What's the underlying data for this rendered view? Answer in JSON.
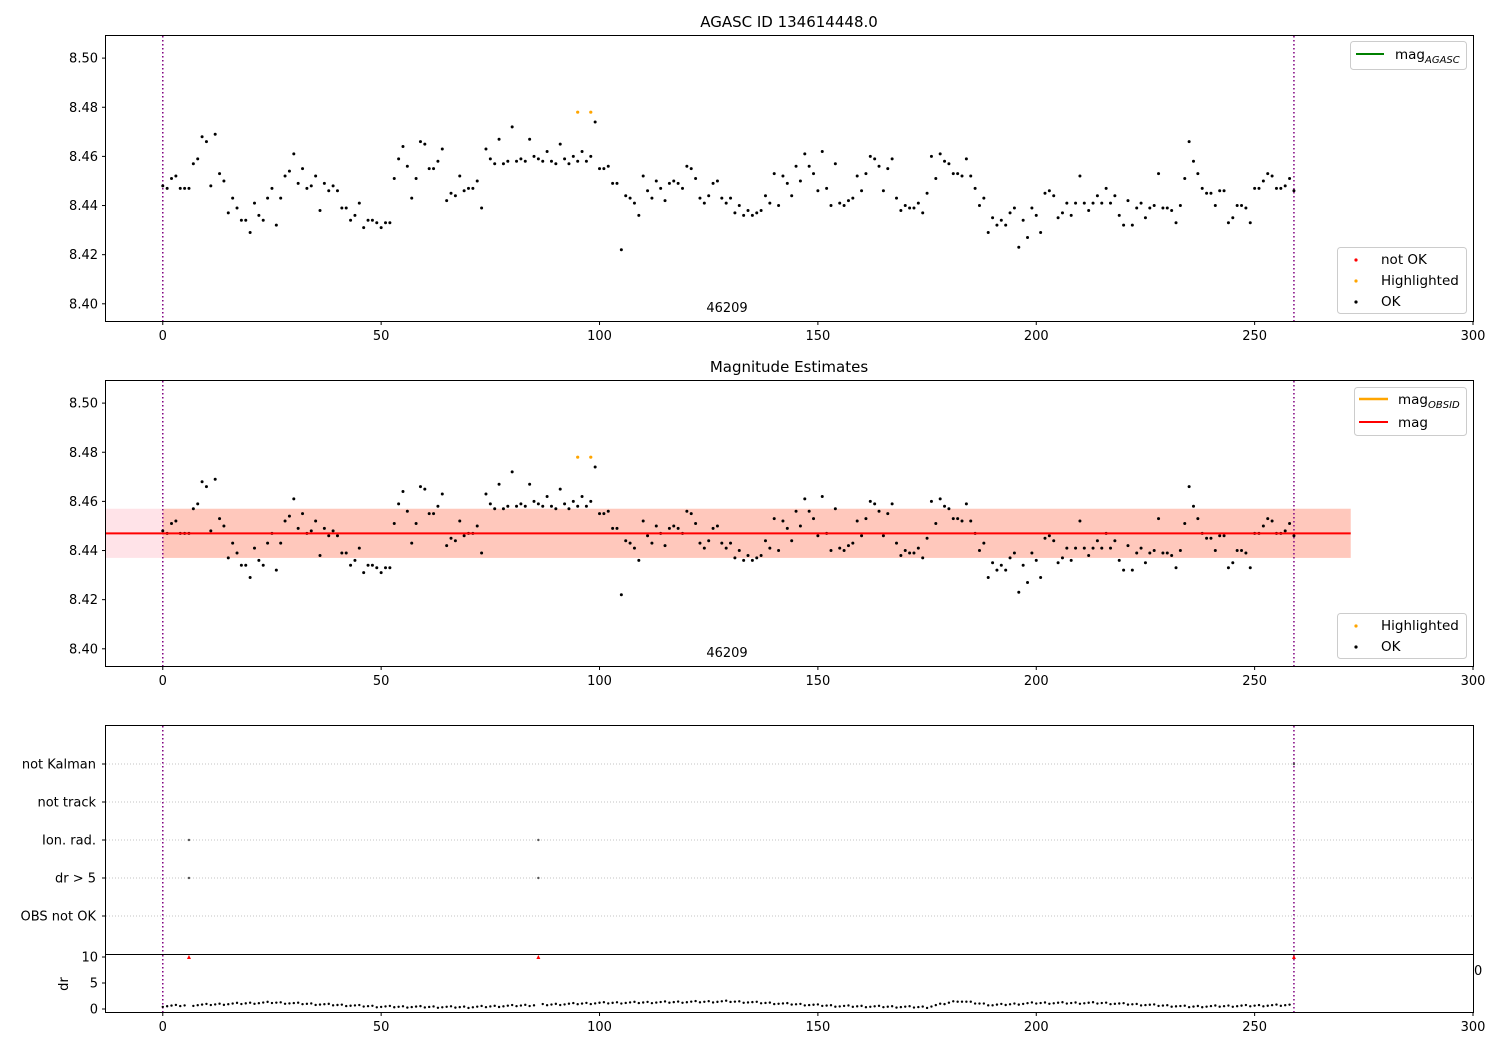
{
  "figure": {
    "title_top": "AGASC ID 134614448.0",
    "title_mid": "Magnitude Estimates",
    "obsid_label": "46209",
    "edge_fragment": "0"
  },
  "colors": {
    "ok": "#000000",
    "highlighted": "#ffa500",
    "not_ok": "#ff0000",
    "agasc_line": "#008000",
    "mag_line": "#ff0000",
    "obsid_line": "#ffa500",
    "band_outer": "#ffc0cb",
    "band_inner": "#ffa07a",
    "obs_boundary": "#800080",
    "grid": "#b0b0b0"
  },
  "legends": {
    "top_lines": [
      {
        "label": "mag",
        "subscript": "AGASC",
        "color": "#008000"
      }
    ],
    "top_points": [
      {
        "label": "not OK",
        "color": "#ff0000"
      },
      {
        "label": "Highlighted",
        "color": "#ffa500"
      },
      {
        "label": "OK",
        "color": "#000000"
      }
    ],
    "mid_lines": [
      {
        "label": "mag",
        "subscript": "OBSID",
        "color": "#ffa500"
      },
      {
        "label": "mag",
        "subscript": "",
        "color": "#ff0000"
      }
    ],
    "mid_points": [
      {
        "label": "Highlighted",
        "color": "#ffa500"
      },
      {
        "label": "OK",
        "color": "#000000"
      }
    ]
  },
  "flags": {
    "labels": [
      "not Kalman",
      "not track",
      "Ion. rad.",
      "dr > 5",
      "OBS not OK"
    ]
  },
  "chart_data": [
    {
      "type": "scatter",
      "panel": "top",
      "title": "AGASC ID 134614448.0",
      "xlim": [
        -13,
        300
      ],
      "ylim": [
        8.393,
        8.509
      ],
      "xticks": [
        0,
        50,
        100,
        150,
        200,
        250,
        300
      ],
      "yticks": [
        8.4,
        8.42,
        8.44,
        8.46,
        8.48,
        8.5
      ],
      "obs_boundaries": [
        0,
        259
      ],
      "annotations": [
        "46209"
      ],
      "series": [
        {
          "name": "OK",
          "source": "magnitudes"
        },
        {
          "name": "Highlighted",
          "x": [
            95,
            98
          ],
          "y": [
            8.478,
            8.478
          ]
        }
      ],
      "legend": [
        "upper right",
        "lower right"
      ]
    },
    {
      "type": "scatter",
      "panel": "middle",
      "title": "Magnitude Estimates",
      "xlim": [
        -13,
        300
      ],
      "ylim": [
        8.393,
        8.509
      ],
      "xticks": [
        0,
        50,
        100,
        150,
        200,
        250,
        300
      ],
      "yticks": [
        8.4,
        8.42,
        8.44,
        8.46,
        8.48,
        8.5
      ],
      "mag": 8.447,
      "band_outer": [
        8.437,
        8.457
      ],
      "band_outer_x": [
        -13,
        272
      ],
      "band_inner_x": [
        0,
        272
      ],
      "obs_boundaries": [
        0,
        259
      ],
      "annotations": [
        "46209"
      ],
      "series": [
        {
          "name": "OK",
          "source": "magnitudes"
        },
        {
          "name": "Highlighted",
          "x": [
            95,
            98
          ],
          "y": [
            8.478,
            8.478
          ]
        },
        {
          "name": "mag",
          "y": 8.447
        }
      ],
      "legend": [
        "upper right",
        "lower right"
      ]
    },
    {
      "type": "scatter",
      "panel": "flags",
      "categories": [
        "not Kalman",
        "not track",
        "Ion. rad.",
        "dr > 5",
        "OBS not OK"
      ],
      "xlim": [
        -13,
        300
      ],
      "points": [
        {
          "x": 6,
          "flag": "Ion. rad."
        },
        {
          "x": 6,
          "flag": "dr > 5"
        },
        {
          "x": 86,
          "flag": "Ion. rad."
        },
        {
          "x": 86,
          "flag": "dr > 5"
        },
        {
          "x": 259,
          "flag": "not Kalman"
        }
      ]
    },
    {
      "type": "scatter",
      "panel": "dr",
      "ylabel": "dr",
      "xlim": [
        -13,
        300
      ],
      "ylim": [
        -0.5,
        10.5
      ],
      "yticks": [
        0,
        5,
        10
      ],
      "xticks": [
        0,
        50,
        100,
        150,
        200,
        250,
        300
      ],
      "clipped_high": [
        6,
        86,
        259
      ],
      "dr_profile": [
        [
          0,
          0.4
        ],
        [
          25,
          1.1
        ],
        [
          50,
          0.3
        ],
        [
          70,
          0.2
        ],
        [
          100,
          1.0
        ],
        [
          130,
          1.3
        ],
        [
          155,
          0.4
        ],
        [
          175,
          0.2
        ],
        [
          182,
          1.4
        ],
        [
          190,
          0.6
        ],
        [
          200,
          1.0
        ],
        [
          215,
          1.0
        ],
        [
          235,
          0.3
        ],
        [
          259,
          0.6
        ]
      ]
    }
  ],
  "magnitudes": [
    8.448,
    8.447,
    8.451,
    8.452,
    8.447,
    8.447,
    8.447,
    8.457,
    8.459,
    8.468,
    8.466,
    8.448,
    8.469,
    8.453,
    8.45,
    8.437,
    8.443,
    8.439,
    8.434,
    8.434,
    8.429,
    8.441,
    8.436,
    8.434,
    8.443,
    8.447,
    8.432,
    8.443,
    8.452,
    8.454,
    8.461,
    8.449,
    8.455,
    8.447,
    8.448,
    8.452,
    8.438,
    8.449,
    8.446,
    8.448,
    8.446,
    8.439,
    8.439,
    8.434,
    8.436,
    8.441,
    8.431,
    8.434,
    8.434,
    8.433,
    8.431,
    8.433,
    8.433,
    8.451,
    8.459,
    8.464,
    8.456,
    8.443,
    8.451,
    8.466,
    8.465,
    8.455,
    8.455,
    8.458,
    8.463,
    8.442,
    8.445,
    8.444,
    8.452,
    8.446,
    8.447,
    8.447,
    8.45,
    8.439,
    8.463,
    8.459,
    8.457,
    8.467,
    8.457,
    8.458,
    8.472,
    8.458,
    8.459,
    8.458,
    8.467,
    8.46,
    8.459,
    8.458,
    8.462,
    8.458,
    8.457,
    8.465,
    8.459,
    8.457,
    8.46,
    8.458,
    8.462,
    8.458,
    8.46,
    8.474,
    8.455,
    8.455,
    8.456,
    8.449,
    8.449,
    8.422,
    8.444,
    8.443,
    8.441,
    8.436,
    8.452,
    8.446,
    8.443,
    8.45,
    8.447,
    8.442,
    8.449,
    8.45,
    8.449,
    8.447,
    8.456,
    8.455,
    8.451,
    8.443,
    8.441,
    8.444,
    8.449,
    8.45,
    8.443,
    8.441,
    8.443,
    8.437,
    8.44,
    8.436,
    8.438,
    8.436,
    8.437,
    8.438,
    8.444,
    8.441,
    8.453,
    8.44,
    8.452,
    8.449,
    8.444,
    8.456,
    8.45,
    8.461,
    8.456,
    8.453,
    8.446,
    8.462,
    8.447,
    8.44,
    8.457,
    8.441,
    8.44,
    8.442,
    8.443,
    8.452,
    8.446,
    8.453,
    8.46,
    8.459,
    8.456,
    8.446,
    8.455,
    8.459,
    8.443,
    8.438,
    8.44,
    8.439,
    8.439,
    8.441,
    8.437,
    8.445,
    8.46,
    8.451,
    8.461,
    8.458,
    8.457,
    8.453,
    8.453,
    8.452,
    8.459,
    8.452,
    8.447,
    8.44,
    8.443,
    8.429,
    8.435,
    8.432,
    8.434,
    8.432,
    8.437,
    8.439,
    8.423,
    8.434,
    8.427,
    8.439,
    8.436,
    8.429,
    8.445,
    8.446,
    8.444,
    8.435,
    8.437,
    8.441,
    8.436,
    8.441,
    8.452,
    8.441,
    8.438,
    8.441,
    8.444,
    8.441,
    8.447,
    8.441,
    8.444,
    8.436,
    8.432,
    8.442,
    8.432,
    8.439,
    8.441,
    8.435,
    8.439,
    8.44,
    8.453,
    8.439,
    8.439,
    8.438,
    8.433,
    8.44,
    8.451,
    8.466,
    8.458,
    8.453,
    8.447,
    8.445,
    8.445,
    8.44,
    8.446,
    8.446,
    8.433,
    8.435,
    8.44,
    8.44,
    8.439,
    8.433,
    8.447,
    8.447,
    8.45,
    8.453,
    8.452,
    8.447,
    8.447,
    8.448,
    8.451,
    8.446
  ]
}
